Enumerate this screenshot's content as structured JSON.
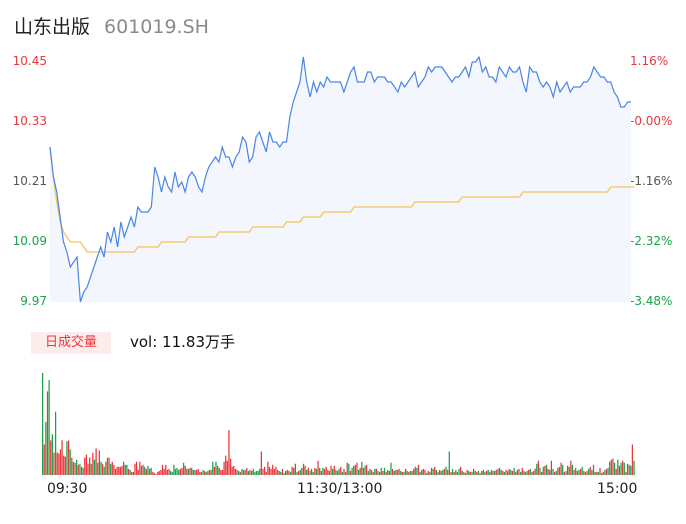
{
  "header": {
    "name": "山东出版",
    "code": "601019.SH"
  },
  "colors": {
    "up": "#e8383d",
    "down": "#1aa34a",
    "neutral": "#555555",
    "price_line": "#4a86e8",
    "avg_line": "#f6c358",
    "area_fill": "#f3f6fd"
  },
  "volume_panel": {
    "tag": "日成交量",
    "summary": "vol: 11.83万手"
  },
  "chart_data": [
    {
      "type": "line",
      "y_left_ticks": [
        "10.45",
        "10.33",
        "10.21",
        "10.09",
        "9.97"
      ],
      "y_right_ticks": [
        "1.16%",
        "-0.00%",
        "-1.16%",
        "-2.32%",
        "-3.48%"
      ],
      "x_ticks": [
        "09:30",
        "11:30/13:00",
        "15:00"
      ],
      "ylim": [
        9.97,
        10.45
      ],
      "prev_close": 10.33,
      "series": [
        {
          "role": "price",
          "values": [
            10.28,
            10.22,
            10.19,
            10.14,
            10.09,
            10.07,
            10.04,
            10.05,
            10.06,
            9.97,
            9.99,
            10.0,
            10.02,
            10.04,
            10.06,
            10.08,
            10.06,
            10.11,
            10.09,
            10.12,
            10.08,
            10.13,
            10.1,
            10.12,
            10.14,
            10.12,
            10.16,
            10.15,
            10.15,
            10.15,
            10.16,
            10.24,
            10.22,
            10.19,
            10.22,
            10.2,
            10.19,
            10.23,
            10.2,
            10.21,
            10.19,
            10.22,
            10.23,
            10.22,
            10.2,
            10.19,
            10.22,
            10.24,
            10.25,
            10.26,
            10.25,
            10.28,
            10.26,
            10.26,
            10.24,
            10.26,
            10.27,
            10.3,
            10.29,
            10.25,
            10.26,
            10.3,
            10.31,
            10.29,
            10.27,
            10.31,
            10.29,
            10.29,
            10.28,
            10.29,
            10.29,
            10.34,
            10.37,
            10.39,
            10.41,
            10.46,
            10.41,
            10.38,
            10.41,
            10.39,
            10.41,
            10.4,
            10.42,
            10.41,
            10.41,
            10.41,
            10.41,
            10.39,
            10.41,
            10.43,
            10.44,
            10.41,
            10.41,
            10.41,
            10.43,
            10.43,
            10.41,
            10.42,
            10.42,
            10.42,
            10.41,
            10.41,
            10.4,
            10.39,
            10.41,
            10.4,
            10.41,
            10.42,
            10.43,
            10.4,
            10.41,
            10.42,
            10.44,
            10.43,
            10.44,
            10.44,
            10.44,
            10.43,
            10.42,
            10.41,
            10.42,
            10.42,
            10.43,
            10.44,
            10.42,
            10.45,
            10.45,
            10.46,
            10.43,
            10.44,
            10.42,
            10.42,
            10.41,
            10.44,
            10.43,
            10.42,
            10.44,
            10.43,
            10.43,
            10.44,
            10.41,
            10.39,
            10.44,
            10.43,
            10.43,
            10.41,
            10.4,
            10.41,
            10.4,
            10.38,
            10.41,
            10.39,
            10.4,
            10.41,
            10.39,
            10.4,
            10.4,
            10.4,
            10.41,
            10.41,
            10.42,
            10.44,
            10.43,
            10.42,
            10.42,
            10.41,
            10.41,
            10.39,
            10.38,
            10.36,
            10.36,
            10.37,
            10.37
          ]
        },
        {
          "role": "avg",
          "values": [
            10.28,
            10.22,
            10.17,
            10.13,
            10.11,
            10.1,
            10.09,
            10.09,
            10.09,
            10.09,
            10.08,
            10.07,
            10.07,
            10.07,
            10.07,
            10.07,
            10.07,
            10.07,
            10.07,
            10.07,
            10.07,
            10.07,
            10.07,
            10.07,
            10.07,
            10.07,
            10.08,
            10.08,
            10.08,
            10.08,
            10.08,
            10.08,
            10.08,
            10.09,
            10.09,
            10.09,
            10.09,
            10.09,
            10.09,
            10.09,
            10.09,
            10.1,
            10.1,
            10.1,
            10.1,
            10.1,
            10.1,
            10.1,
            10.1,
            10.1,
            10.11,
            10.11,
            10.11,
            10.11,
            10.11,
            10.11,
            10.11,
            10.11,
            10.11,
            10.11,
            10.12,
            10.12,
            10.12,
            10.12,
            10.12,
            10.12,
            10.12,
            10.12,
            10.12,
            10.12,
            10.13,
            10.13,
            10.13,
            10.13,
            10.13,
            10.14,
            10.14,
            10.14,
            10.14,
            10.14,
            10.14,
            10.15,
            10.15,
            10.15,
            10.15,
            10.15,
            10.15,
            10.15,
            10.15,
            10.15,
            10.16,
            10.16,
            10.16,
            10.16,
            10.16,
            10.16,
            10.16,
            10.16,
            10.16,
            10.16,
            10.16,
            10.16,
            10.16,
            10.16,
            10.16,
            10.16,
            10.16,
            10.16,
            10.17,
            10.17,
            10.17,
            10.17,
            10.17,
            10.17,
            10.17,
            10.17,
            10.17,
            10.17,
            10.17,
            10.17,
            10.17,
            10.17,
            10.18,
            10.18,
            10.18,
            10.18,
            10.18,
            10.18,
            10.18,
            10.18,
            10.18,
            10.18,
            10.18,
            10.18,
            10.18,
            10.18,
            10.18,
            10.18,
            10.18,
            10.18,
            10.19,
            10.19,
            10.19,
            10.19,
            10.19,
            10.19,
            10.19,
            10.19,
            10.19,
            10.19,
            10.19,
            10.19,
            10.19,
            10.19,
            10.19,
            10.19,
            10.19,
            10.19,
            10.19,
            10.19,
            10.19,
            10.19,
            10.19,
            10.19,
            10.19,
            10.19,
            10.2,
            10.2,
            10.2,
            10.2,
            10.2,
            10.2,
            10.2,
            10.2
          ]
        }
      ]
    },
    {
      "type": "bar",
      "name": "volume",
      "values": [
        100,
        30,
        52,
        82,
        93,
        34,
        40,
        22,
        62,
        22,
        21,
        25,
        34,
        19,
        18,
        33,
        34,
        25,
        17,
        13,
        12,
        15,
        10,
        11,
        8,
        7,
        17,
        20,
        11,
        17,
        11,
        22,
        15,
        26,
        12,
        24,
        13,
        11,
        8,
        13,
        17,
        17,
        11,
        13,
        10,
        6,
        8,
        8,
        8,
        9,
        13,
        10,
        10,
        6,
        5,
        3,
        3,
        11,
        13,
        5,
        13,
        9,
        10,
        8,
        6,
        9,
        6,
        7,
        3,
        2,
        1,
        3,
        4,
        5,
        10,
        6,
        10,
        5,
        6,
        4,
        3,
        10,
        6,
        7,
        5,
        6,
        7,
        12,
        9,
        6,
        6,
        7,
        7,
        5,
        5,
        5,
        6,
        3,
        3,
        5,
        4,
        3,
        4,
        5,
        5,
        13,
        8,
        13,
        9,
        7,
        5,
        5,
        13,
        19,
        14,
        44,
        16,
        8,
        9,
        6,
        5,
        4,
        3,
        6,
        5,
        5,
        7,
        4,
        5,
        4,
        6,
        3,
        4,
        4,
        6,
        23,
        6,
        8,
        3,
        13,
        8,
        6,
        10,
        6,
        8,
        5,
        4,
        3,
        6,
        2,
        4,
        5,
        4,
        3,
        8,
        7,
        11,
        3,
        4,
        5,
        7,
        11,
        9,
        5,
        7,
        4,
        6,
        3,
        7,
        6,
        14,
        7,
        4,
        7,
        6,
        8,
        5,
        4,
        9,
        6,
        9,
        5,
        4,
        6,
        8,
        3,
        6,
        3,
        12,
        11,
        4,
        7,
        9,
        10,
        12,
        5,
        7,
        13,
        7,
        9,
        10,
        4,
        6,
        5,
        3,
        6,
        6,
        4,
        3,
        7,
        4,
        7,
        3,
        5,
        4,
        12,
        6,
        4,
        5,
        5,
        6,
        4,
        3,
        3,
        6,
        4,
        3,
        4,
        4,
        6,
        8,
        7,
        10,
        3,
        5,
        6,
        5,
        2,
        4,
        3,
        7,
        6,
        8,
        5,
        3,
        5,
        4,
        5,
        6,
        8,
        5,
        23,
        3,
        6,
        3,
        5,
        3,
        6,
        8,
        4,
        3,
        2,
        5,
        4,
        3,
        3,
        6,
        4,
        3,
        4,
        2,
        4,
        5,
        3,
        4,
        5,
        3,
        5,
        4,
        4,
        5,
        6,
        7,
        5,
        4,
        3,
        5,
        4,
        6,
        5,
        4,
        7,
        3,
        5,
        6,
        3,
        7,
        4,
        3,
        4,
        5,
        6,
        3,
        4,
        6,
        11,
        14,
        7,
        3,
        8,
        9,
        10,
        6,
        5,
        14,
        6,
        3,
        4,
        7,
        8,
        12,
        10,
        3,
        4,
        9,
        8,
        14,
        10,
        5,
        7,
        4,
        5,
        6,
        8,
        4,
        3,
        4,
        6,
        8,
        5,
        10,
        3,
        3,
        3,
        7,
        2,
        3,
        5,
        6,
        7,
        13,
        15,
        16,
        12,
        6,
        15,
        9,
        12,
        14,
        12,
        3,
        11,
        10,
        9,
        30,
        14
      ],
      "directions": [
        "d",
        "u",
        "d",
        "u",
        "d",
        "u",
        "d",
        "u",
        "d",
        "u",
        "u",
        "u",
        "u",
        "u",
        "u",
        "d",
        "u",
        "d",
        "u",
        "d",
        "u",
        "d",
        "u",
        "d",
        "u",
        "d",
        "u",
        "u",
        "u",
        "u",
        "d",
        "u",
        "d",
        "u",
        "d",
        "u",
        "d",
        "u",
        "d",
        "u",
        "d",
        "u",
        "d",
        "u",
        "u",
        "u",
        "u",
        "u",
        "u",
        "u",
        "d",
        "u",
        "d",
        "u",
        "d",
        "u",
        "u",
        "u",
        "u",
        "u",
        "u",
        "d",
        "u",
        "d",
        "u",
        "d",
        "u",
        "d",
        "u",
        "u",
        "u",
        "u",
        "u",
        "u",
        "u",
        "u",
        "u",
        "u",
        "u",
        "d",
        "d",
        "d",
        "d",
        "d",
        "d",
        "u",
        "u",
        "d",
        "u",
        "u",
        "d",
        "u",
        "d",
        "u",
        "d",
        "u",
        "u",
        "u",
        "u",
        "d",
        "u",
        "d",
        "u",
        "d",
        "u",
        "d",
        "u",
        "d",
        "u",
        "d",
        "u",
        "u",
        "u",
        "u",
        "u",
        "u",
        "u",
        "u",
        "u",
        "u",
        "u",
        "d",
        "u",
        "d",
        "u",
        "d",
        "u",
        "d",
        "u",
        "d",
        "d",
        "d",
        "d",
        "d",
        "d",
        "u",
        "u",
        "u",
        "u",
        "u",
        "u",
        "u",
        "u",
        "u",
        "u",
        "d",
        "u",
        "d",
        "u",
        "d",
        "u",
        "d",
        "u",
        "d",
        "u",
        "d",
        "u",
        "d",
        "u",
        "d",
        "u",
        "d",
        "u",
        "d",
        "u",
        "d",
        "u",
        "d",
        "u",
        "d",
        "u",
        "d",
        "u",
        "d",
        "u",
        "u",
        "u",
        "d",
        "u",
        "d",
        "u",
        "d",
        "u",
        "d",
        "u",
        "d",
        "u",
        "d",
        "u",
        "d",
        "u",
        "d",
        "u",
        "d",
        "u",
        "d",
        "u",
        "d",
        "u",
        "d",
        "u",
        "d",
        "u",
        "d",
        "u",
        "d",
        "u",
        "d",
        "u",
        "d",
        "u",
        "d",
        "u",
        "d",
        "u",
        "d",
        "u",
        "d",
        "u",
        "d",
        "u",
        "d",
        "u",
        "d",
        "u",
        "d",
        "u",
        "d",
        "u",
        "d",
        "u",
        "d",
        "u",
        "d",
        "u",
        "d",
        "u",
        "d",
        "u",
        "d",
        "u",
        "d",
        "u",
        "d",
        "u",
        "d",
        "u",
        "d",
        "u",
        "d",
        "u",
        "d",
        "u",
        "d",
        "u",
        "d",
        "u",
        "d",
        "u",
        "d",
        "u",
        "d",
        "u",
        "d",
        "u",
        "d",
        "u",
        "d",
        "u",
        "d",
        "u",
        "d",
        "u",
        "d",
        "u",
        "d",
        "u",
        "d",
        "u",
        "d",
        "u",
        "d",
        "u",
        "d",
        "u",
        "d",
        "u",
        "d",
        "u",
        "d",
        "u",
        "d",
        "u",
        "d",
        "u",
        "d",
        "u",
        "d",
        "u",
        "d",
        "u",
        "d",
        "u",
        "d",
        "u",
        "d",
        "u",
        "d",
        "u",
        "d",
        "u",
        "d",
        "u",
        "d",
        "u",
        "d",
        "u",
        "d",
        "u",
        "d",
        "u",
        "d",
        "u",
        "d",
        "u",
        "d",
        "u",
        "d",
        "u",
        "d",
        "u",
        "d",
        "u",
        "d",
        "u",
        "d",
        "u",
        "d",
        "u",
        "d",
        "u",
        "d",
        "u",
        "d",
        "u",
        "d",
        "u",
        "d",
        "u",
        "d",
        "u",
        "d",
        "u",
        "d",
        "u",
        "d",
        "u",
        "d",
        "u",
        "d",
        "u",
        "d",
        "u",
        "d",
        "u",
        "d",
        "u",
        "d",
        "u",
        "d",
        "u",
        "d",
        "u",
        "d",
        "u",
        "d",
        "u",
        "d",
        "u"
      ]
    }
  ]
}
